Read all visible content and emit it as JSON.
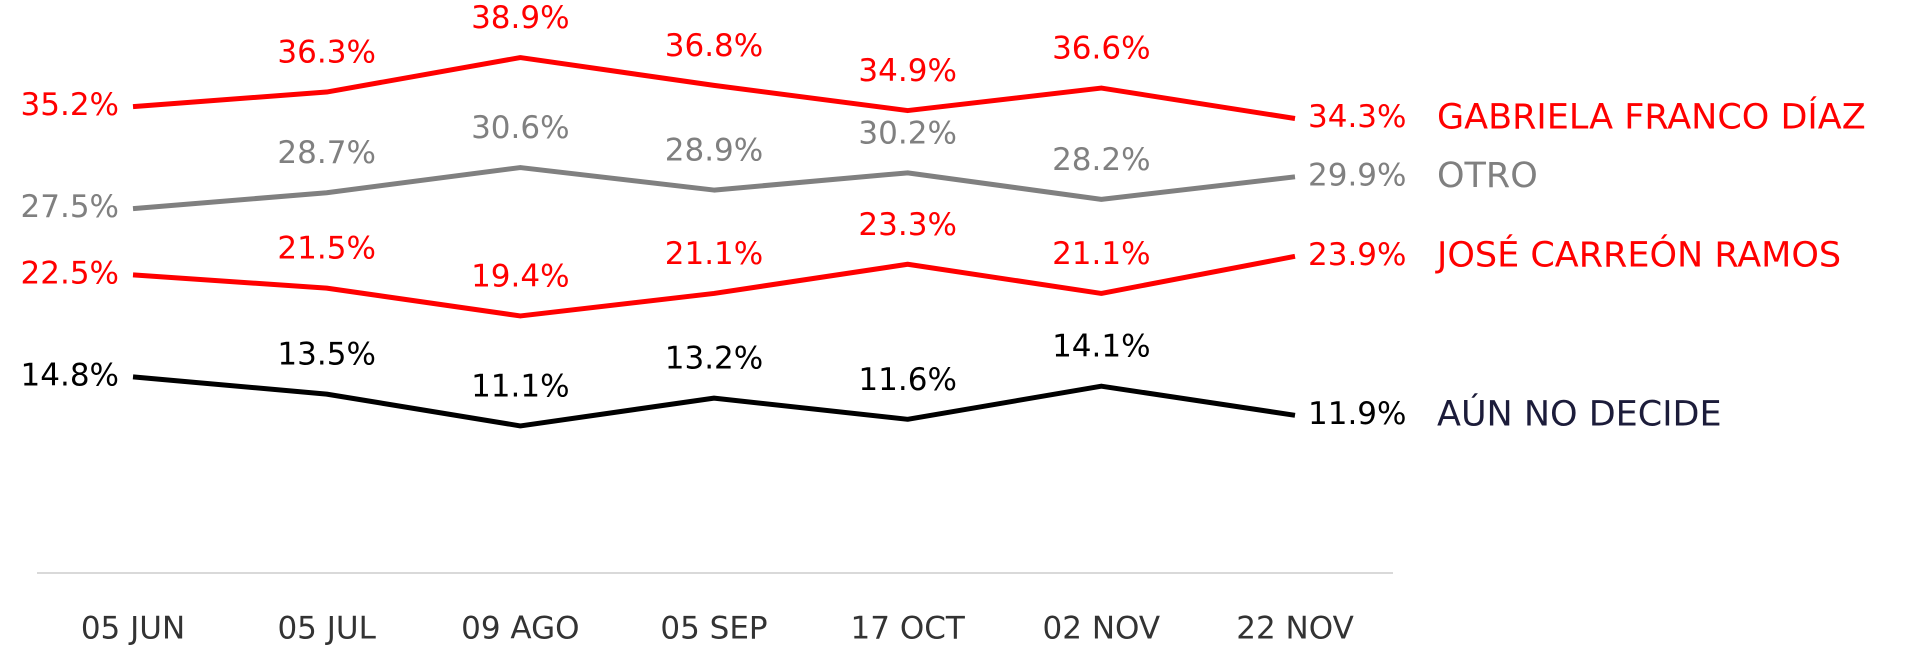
{
  "chart_data": {
    "type": "line",
    "categories": [
      "05 JUN",
      "05 JUL",
      "09 AGO",
      "05 SEP",
      "17 OCT",
      "02 NOV",
      "22 NOV"
    ],
    "ylim": [
      0,
      40
    ],
    "series": [
      {
        "name": "GABRIELA FRANCO DÍAZ",
        "color": "#ff0000",
        "label_color": "#ff0000",
        "values": [
          35.2,
          36.3,
          38.9,
          36.8,
          34.9,
          36.6,
          34.3
        ],
        "value_labels": [
          "35.2%",
          "36.3%",
          "38.9%",
          "36.8%",
          "34.9%",
          "36.6%",
          "34.3%"
        ]
      },
      {
        "name": "OTRO",
        "color": "#808080",
        "label_color": "#808080",
        "values": [
          27.5,
          28.7,
          30.6,
          28.9,
          30.2,
          28.2,
          29.9
        ],
        "value_labels": [
          "27.5%",
          "28.7%",
          "30.6%",
          "28.9%",
          "30.2%",
          "28.2%",
          "29.9%"
        ]
      },
      {
        "name": "JOSÉ CARREÓN RAMOS",
        "color": "#ff0000",
        "label_color": "#ff0000",
        "values": [
          22.5,
          21.5,
          19.4,
          21.1,
          23.3,
          21.1,
          23.9
        ],
        "value_labels": [
          "22.5%",
          "21.5%",
          "19.4%",
          "21.1%",
          "23.3%",
          "21.1%",
          "23.9%"
        ]
      },
      {
        "name": "AÚN NO DECIDE",
        "color": "#000000",
        "label_color": "#1c1c3a",
        "values": [
          14.8,
          13.5,
          11.1,
          13.2,
          11.6,
          14.1,
          11.9
        ],
        "value_labels": [
          "14.8%",
          "13.5%",
          "11.1%",
          "13.2%",
          "11.6%",
          "14.1%",
          "11.9%"
        ]
      }
    ]
  }
}
